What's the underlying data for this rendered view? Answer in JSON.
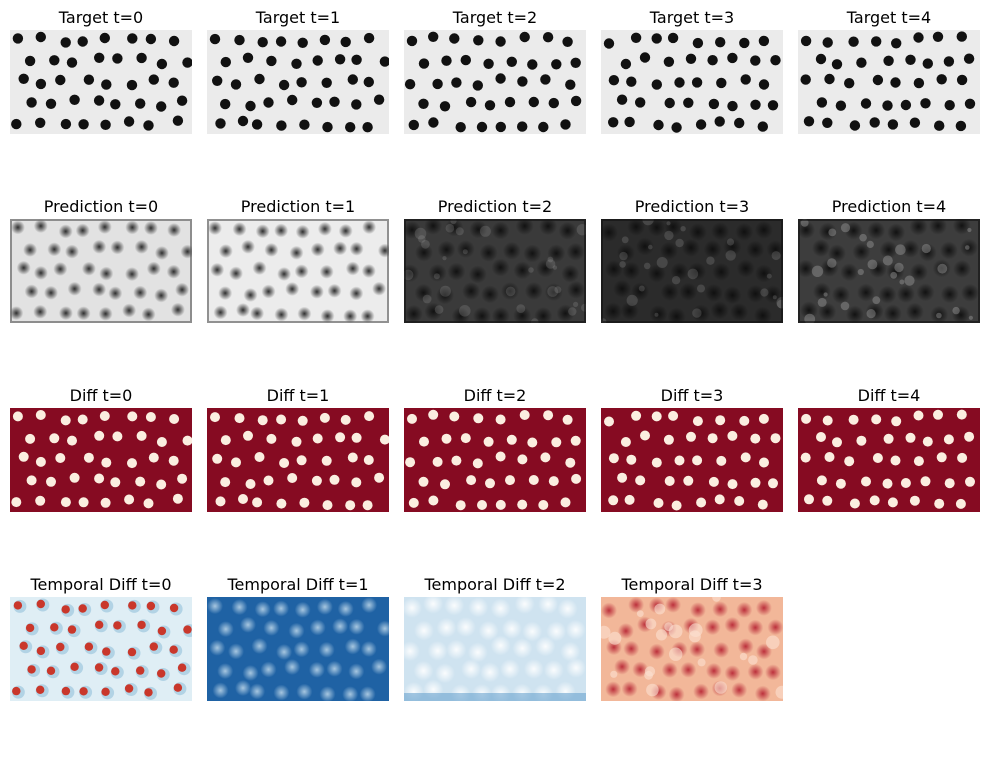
{
  "figure": {
    "rows": [
      {
        "name": "target",
        "panels": [
          {
            "title": "Target t=0"
          },
          {
            "title": "Target t=1"
          },
          {
            "title": "Target t=2"
          },
          {
            "title": "Target t=3"
          },
          {
            "title": "Target t=4"
          }
        ]
      },
      {
        "name": "prediction",
        "panels": [
          {
            "title": "Prediction t=0"
          },
          {
            "title": "Prediction t=1"
          },
          {
            "title": "Prediction t=2"
          },
          {
            "title": "Prediction t=3"
          },
          {
            "title": "Prediction t=4"
          }
        ]
      },
      {
        "name": "diff",
        "panels": [
          {
            "title": "Diff t=0"
          },
          {
            "title": "Diff t=1"
          },
          {
            "title": "Diff t=2"
          },
          {
            "title": "Diff t=3"
          },
          {
            "title": "Diff t=4"
          }
        ]
      },
      {
        "name": "temporal-diff",
        "panels": [
          {
            "title": "Temporal Diff t=0"
          },
          {
            "title": "Temporal Diff t=1"
          },
          {
            "title": "Temporal Diff t=2"
          },
          {
            "title": "Temporal Diff t=3"
          }
        ]
      }
    ]
  },
  "colors": {
    "target_bg": "#ebebeb",
    "target_dot": "#111111",
    "pred_light_bg": "#e2e2e2",
    "pred_dark_bg": "#2b2b2b",
    "pred_dot": "#1a1a1a",
    "diff_bg": "#860b22",
    "diff_dot": "#fbeee0",
    "temporal_light_bg": "#dfeef5",
    "temporal_red_dot": "#c9372b",
    "temporal_blue_bg": "#1f62a4",
    "temporal_blue_light": "#c9e0ef",
    "temporal_orange_bg": "#f2b799",
    "temporal_red_dark": "#b2182b"
  }
}
